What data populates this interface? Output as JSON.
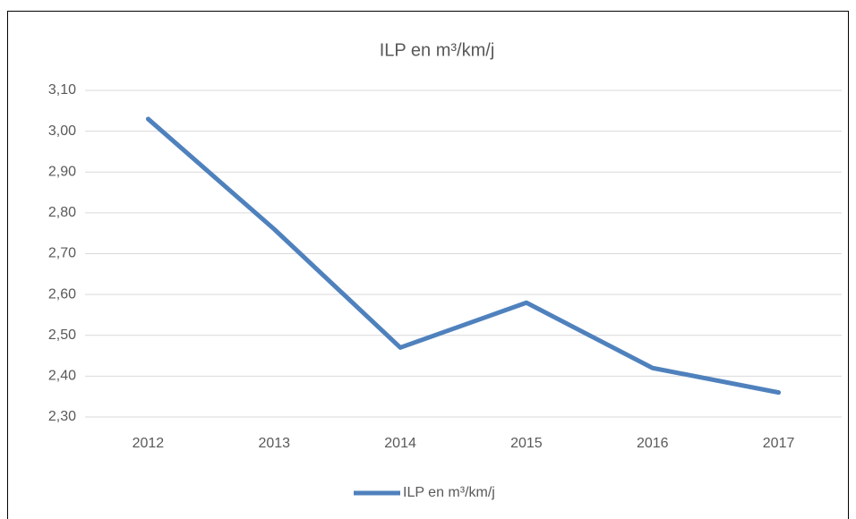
{
  "chart_data": {
    "type": "line",
    "title": "ILP en m³/km/j",
    "categories": [
      "2012",
      "2013",
      "2014",
      "2015",
      "2016",
      "2017"
    ],
    "series": [
      {
        "name": "ILP en m³/km/j",
        "color": "#4f81bd",
        "values": [
          3.03,
          2.76,
          2.47,
          2.58,
          2.42,
          2.36
        ]
      }
    ],
    "ylim": [
      2.3,
      3.1
    ],
    "yticks": [
      {
        "value": 2.3,
        "label": "2,30"
      },
      {
        "value": 2.4,
        "label": "2,40"
      },
      {
        "value": 2.5,
        "label": "2,50"
      },
      {
        "value": 2.6,
        "label": "2,60"
      },
      {
        "value": 2.7,
        "label": "2,70"
      },
      {
        "value": 2.8,
        "label": "2,80"
      },
      {
        "value": 2.9,
        "label": "2,90"
      },
      {
        "value": 3.0,
        "label": "3,00"
      },
      {
        "value": 3.1,
        "label": "3,10"
      }
    ],
    "grid": true,
    "legend": "bottom"
  }
}
